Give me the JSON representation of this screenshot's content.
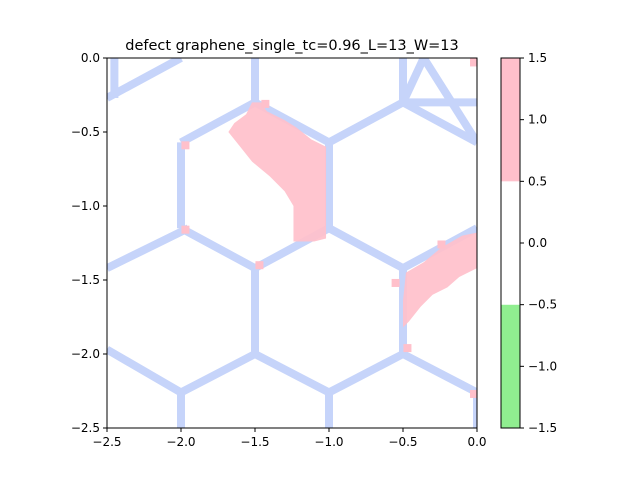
{
  "chart_data": {
    "type": "heatmap",
    "title": "defect graphene_single_tc=0.96_L=13_W=13",
    "xlabel": "",
    "ylabel": "",
    "xlim": [
      -2.5,
      0.0
    ],
    "ylim": [
      -2.5,
      0.0
    ],
    "xticks": [
      -2.5,
      -2.0,
      -1.5,
      -1.0,
      -0.5,
      0.0
    ],
    "xtick_labels": [
      "−2.5",
      "−2.0",
      "−1.5",
      "−1.0",
      "−0.5",
      "0.0"
    ],
    "yticks": [
      0.0,
      -0.5,
      -1.0,
      -1.5,
      -2.0,
      -2.5
    ],
    "ytick_labels": [
      "0.0",
      "−0.5",
      "−1.0",
      "−1.5",
      "−2.0",
      "−2.5"
    ],
    "grid": false,
    "lattice_color": "#c6d4fa",
    "lattice_bonds": [
      [
        -2.5,
        -0.27,
        -2.0,
        0.0
      ],
      [
        -2.45,
        0.0,
        -2.45,
        -0.27
      ],
      [
        -2.5,
        -1.42,
        -1.95,
        -1.15
      ],
      [
        -2.5,
        -1.97,
        -2.0,
        -2.26
      ],
      [
        -2.0,
        -2.26,
        -2.0,
        -2.5
      ],
      [
        -2.0,
        -0.57,
        -1.5,
        -0.3
      ],
      [
        -1.5,
        -0.3,
        -1.0,
        -0.57
      ],
      [
        -1.5,
        0.0,
        -1.5,
        -0.3
      ],
      [
        -2.0,
        -0.57,
        -2.0,
        -1.15
      ],
      [
        -1.0,
        -0.57,
        -1.0,
        -1.15
      ],
      [
        -2.0,
        -1.15,
        -1.5,
        -1.42
      ],
      [
        -1.5,
        -1.42,
        -1.0,
        -1.15
      ],
      [
        -1.5,
        -1.42,
        -1.5,
        -2.0
      ],
      [
        -1.5,
        -2.0,
        -1.0,
        -2.26
      ],
      [
        -1.5,
        -2.0,
        -2.0,
        -2.26
      ],
      [
        -1.0,
        -2.26,
        -1.0,
        -2.5
      ],
      [
        -1.0,
        -0.57,
        -0.5,
        -0.3
      ],
      [
        -0.5,
        -0.3,
        -0.5,
        0.0
      ],
      [
        -0.5,
        -0.3,
        0.0,
        -0.57
      ],
      [
        -0.5,
        -0.3,
        0.0,
        -0.3
      ],
      [
        -0.5,
        -0.3,
        -0.36,
        0.0
      ],
      [
        -0.36,
        0.0,
        0.0,
        -0.57
      ],
      [
        -1.0,
        -1.15,
        -0.5,
        -1.42
      ],
      [
        -0.5,
        -1.42,
        -0.5,
        -2.0
      ],
      [
        -0.5,
        -1.42,
        0.0,
        -1.15
      ],
      [
        -0.5,
        -2.0,
        -1.0,
        -2.26
      ],
      [
        -0.5,
        -2.0,
        0.0,
        -2.26
      ],
      [
        0.0,
        -2.26,
        0.0,
        -2.5
      ]
    ],
    "pink_regions": [
      [
        [
          -1.52,
          -0.3
        ],
        [
          -1.46,
          -0.3
        ],
        [
          -1.42,
          -0.36
        ],
        [
          -1.3,
          -0.42
        ],
        [
          -1.22,
          -0.47
        ],
        [
          -1.12,
          -0.55
        ],
        [
          -1.02,
          -0.6
        ],
        [
          -1.02,
          -1.22
        ],
        [
          -1.1,
          -1.24
        ],
        [
          -1.24,
          -1.24
        ],
        [
          -1.24,
          -1.0
        ],
        [
          -1.3,
          -0.9
        ],
        [
          -1.4,
          -0.8
        ],
        [
          -1.52,
          -0.7
        ],
        [
          -1.6,
          -0.6
        ],
        [
          -1.68,
          -0.5
        ],
        [
          -1.64,
          -0.44
        ],
        [
          -1.56,
          -0.38
        ]
      ],
      [
        [
          -0.48,
          -1.45
        ],
        [
          -0.36,
          -1.38
        ],
        [
          -0.24,
          -1.28
        ],
        [
          -0.1,
          -1.2
        ],
        [
          0.0,
          -1.18
        ],
        [
          0.0,
          -1.42
        ],
        [
          -0.12,
          -1.48
        ],
        [
          -0.2,
          -1.55
        ],
        [
          -0.3,
          -1.6
        ],
        [
          -0.38,
          -1.68
        ],
        [
          -0.46,
          -1.78
        ],
        [
          -0.5,
          -1.82
        ],
        [
          -0.5,
          -1.64
        ]
      ]
    ],
    "pink_dots": [
      [
        -1.97,
        -0.59
      ],
      [
        -1.97,
        -1.16
      ],
      [
        -1.47,
        -1.4
      ],
      [
        -1.43,
        -0.31
      ],
      [
        -0.55,
        -1.52
      ],
      [
        -0.47,
        -1.96
      ],
      [
        -0.02,
        -0.03
      ],
      [
        -0.02,
        -2.27
      ],
      [
        -0.24,
        -1.26
      ]
    ],
    "color_levels": [
      {
        "from": -1.5,
        "to": -0.5,
        "color": "#90ee90"
      },
      {
        "from": -0.5,
        "to": 0.5,
        "color": "#ffffff"
      },
      {
        "from": 0.5,
        "to": 1.5,
        "color": "#ffc0cb"
      }
    ],
    "colorbar": {
      "range": [
        -1.5,
        1.5
      ],
      "ticks": [
        1.5,
        1.0,
        0.5,
        0.0,
        -0.5,
        -1.0,
        -1.5
      ],
      "tick_labels": [
        "1.5",
        "1.0",
        "0.5",
        "0.0",
        "−0.5",
        "−1.0",
        "−1.5"
      ]
    }
  }
}
